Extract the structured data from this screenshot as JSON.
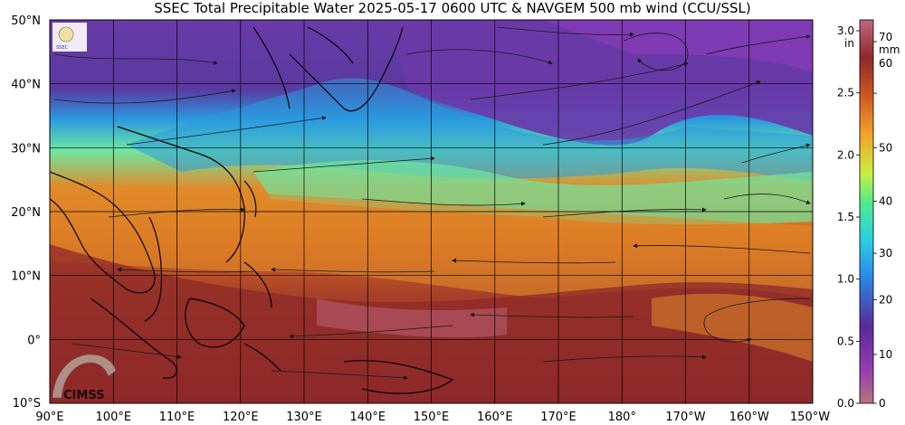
{
  "title": "SSEC Total Precipitable Water  2025-05-17 0600 UTC & NAVGEM 500 mb wind (CCU/SSL)",
  "logo_text": "CIMSS",
  "lat_labels": [
    "50°N",
    "40°N",
    "30°N",
    "20°N",
    "10°N",
    "0°",
    "10°S"
  ],
  "lon_labels": [
    "90°E",
    "100°E",
    "110°E",
    "120°E",
    "130°E",
    "140°E",
    "150°E",
    "160°E",
    "170°E",
    "180°",
    "170°W",
    "160°W",
    "150°W"
  ],
  "colorbar": {
    "inch_unit": "in",
    "mm_unit": "mm",
    "inch_ticks": [
      "3.0",
      "2.5",
      "2.0",
      "1.5",
      "1.0",
      "0.5",
      "0.0"
    ],
    "mm_ticks": [
      "70",
      "60",
      "50",
      "40",
      "30",
      "20",
      "10",
      "0"
    ],
    "colors": [
      "#b7767a",
      "#9a3fb0",
      "#5a2a9a",
      "#2a8ae8",
      "#2ad0e0",
      "#4ee890",
      "#c8f040",
      "#f4a22a",
      "#d05a1e",
      "#8e2a2a",
      "#c06680"
    ]
  },
  "colors": {
    "moist": "#8e2a2a",
    "orange": "#d8661e",
    "green": "#6ee6a0",
    "blue": "#2a9ae0",
    "purple": "#6a3aa8",
    "stream": "#1a1a1a"
  }
}
